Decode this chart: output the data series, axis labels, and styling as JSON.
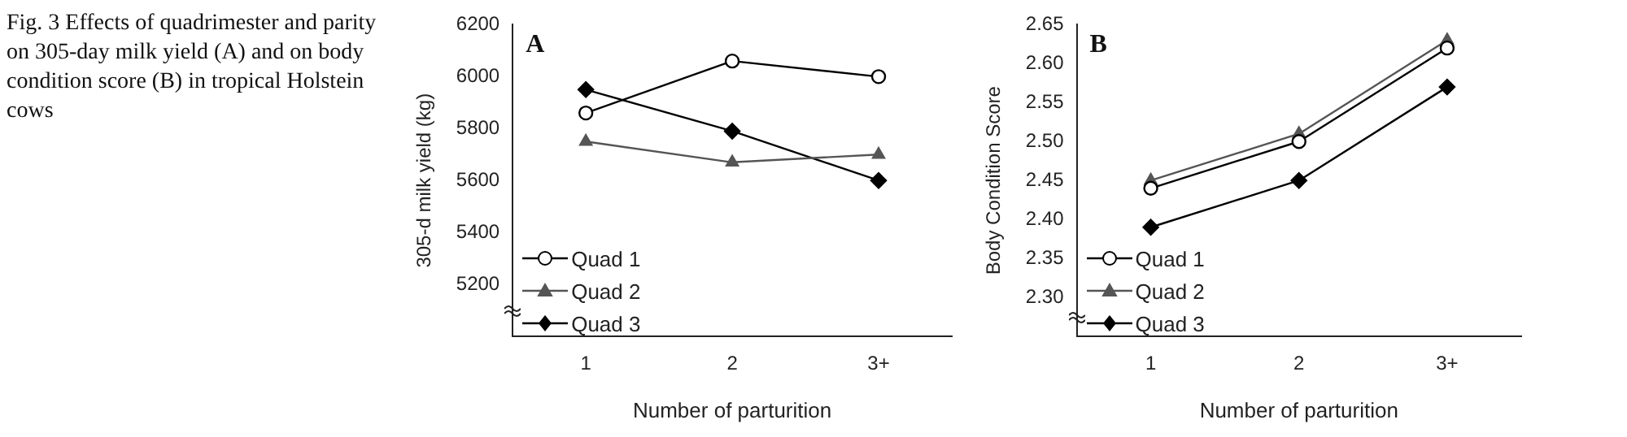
{
  "chart_data": [
    {
      "type": "line",
      "annotations": [
        "Fig. 3 Effects of quadrimester and parity on 305-day milk yield (A) and on body condition score (B) in tropical Holstein cows",
        "A"
      ],
      "xlabel": "Number of parturition",
      "ylabel": "305-d milk yield (kg)",
      "categories": [
        "1",
        "2",
        "3+"
      ],
      "series": [
        {
          "name": "Quad 1",
          "color": "#000000",
          "marker": "circle",
          "values": [
            5860,
            6060,
            6000
          ]
        },
        {
          "name": "Quad 2",
          "color": "#555555",
          "marker": "triangle",
          "values": [
            5750,
            5670,
            5700
          ]
        },
        {
          "name": "Quad 3",
          "color": "#000000",
          "marker": "diamond",
          "values": [
            5950,
            5790,
            5600
          ]
        }
      ],
      "ylim": [
        5000,
        6200
      ],
      "yticks": [
        5200,
        5400,
        5600,
        5800,
        6000,
        6200
      ],
      "grid": false,
      "legend": "bottom left",
      "line_style": "solid"
    },
    {
      "type": "line",
      "annotations": [
        "B"
      ],
      "xlabel": "Number of parturition",
      "ylabel": "Body Condition Score",
      "categories": [
        "1",
        "2",
        "3+"
      ],
      "series": [
        {
          "name": "Quad 1",
          "color": "#000000",
          "marker": "circle",
          "values": [
            2.44,
            2.5,
            2.62
          ]
        },
        {
          "name": "Quad 2",
          "color": "#555555",
          "marker": "triangle",
          "values": [
            2.45,
            2.51,
            2.63
          ]
        },
        {
          "name": "Quad 3",
          "color": "#000000",
          "marker": "diamond",
          "values": [
            2.39,
            2.45,
            2.57
          ]
        }
      ],
      "ylim": [
        2.25,
        2.65
      ],
      "yticks": [
        {
          "value": 2.3,
          "label": "2.30"
        },
        {
          "value": 2.35,
          "label": "2.35"
        },
        {
          "value": 2.4,
          "label": "2.40"
        },
        {
          "value": 2.45,
          "label": "2.45"
        },
        {
          "value": 2.5,
          "label": "2.50"
        },
        {
          "value": 2.55,
          "label": "2.55"
        },
        {
          "value": 2.6,
          "label": "2.60"
        },
        {
          "value": 2.65,
          "label": "2.65"
        }
      ],
      "grid": false,
      "legend": "bottom left",
      "line_style": "solid"
    }
  ]
}
